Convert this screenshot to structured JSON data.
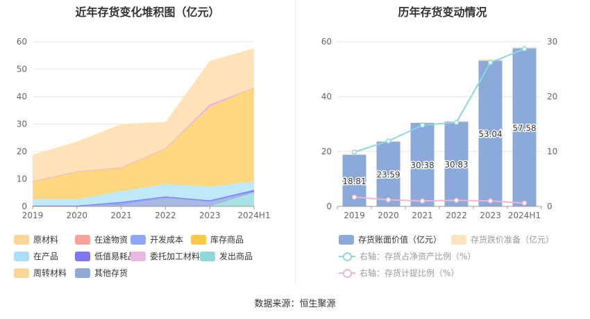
{
  "left_chart": {
    "title": "近年存货变化堆积图（亿元）",
    "legend": [
      {
        "name": "原材料",
        "color": "#FDD497"
      },
      {
        "name": "在途物资",
        "color": "#F7A39C"
      },
      {
        "name": "开发成本",
        "color": "#8DA8F7"
      },
      {
        "name": "库存商品",
        "color": "#FCC944"
      },
      {
        "name": "在产品",
        "color": "#A9E0F7"
      },
      {
        "name": "低值易耗品",
        "color": "#7F77EE"
      },
      {
        "name": "委托加工材料",
        "color": "#E9B7DF"
      },
      {
        "name": "发出商品",
        "color": "#8ED8D9"
      },
      {
        "name": "周转材料",
        "color": "#FDD79A"
      },
      {
        "name": "其他存货",
        "color": "#8FA8D8"
      }
    ]
  },
  "right_chart": {
    "title": "历年存货变动情况",
    "legend": [
      {
        "name": "存货账面价值（亿元）",
        "color": "#8BA9D9"
      },
      {
        "name": "存货跌价准备（亿元）",
        "color": "#FCE4BE"
      },
      {
        "name": "右轴：存货占净资产比例（%）",
        "color": "#8AD8DE"
      },
      {
        "name": "右轴：存货计提比例（%）",
        "color": "#E9B6D8"
      }
    ]
  },
  "chart_data": [
    {
      "type": "area",
      "title": "近年存货变化堆积图（亿元）",
      "categories": [
        "2019",
        "2020",
        "2021",
        "2022",
        "2023",
        "2024H1"
      ],
      "ylim": [
        0,
        60
      ],
      "yticks": [
        0,
        10,
        20,
        30,
        40,
        50,
        60
      ],
      "series": [
        {
          "name": "发出商品",
          "color": "#A8E2E3",
          "values": [
            0,
            0,
            0,
            0,
            0,
            5.0
          ]
        },
        {
          "name": "其他存货",
          "color": "#A6B9E0",
          "values": [
            0.3,
            0.3,
            0.5,
            3.0,
            1.6,
            0
          ]
        },
        {
          "name": "开发成本",
          "color": "#8DA8F7",
          "values": [
            0,
            0,
            1.0,
            0.5,
            0.5,
            0.5
          ]
        },
        {
          "name": "低值易耗品",
          "color": "#7F77EE",
          "values": [
            0,
            0,
            0.1,
            0.1,
            0.1,
            0.5
          ]
        },
        {
          "name": "在产品",
          "color": "#BDE9F9",
          "values": [
            2.3,
            2.3,
            3.9,
            4.5,
            5.0,
            3.0
          ]
        },
        {
          "name": "库存商品",
          "color": "#FFD77E",
          "values": [
            6.6,
            10.2,
            8.6,
            13.0,
            29.0,
            34.2
          ]
        },
        {
          "name": "委托加工材料",
          "color": "#E9B7DF",
          "values": [
            0,
            0,
            0.1,
            0.1,
            1.0,
            0.1
          ]
        },
        {
          "name": "原材料",
          "color": "#FEE3B8",
          "values": [
            9.6,
            10.8,
            15.8,
            9.6,
            15.8,
            14.3
          ]
        }
      ]
    },
    {
      "type": "bar",
      "title": "历年存货变动情况",
      "categories": [
        "2019",
        "2020",
        "2021",
        "2022",
        "2023",
        "2024H1"
      ],
      "ylim": [
        0,
        60
      ],
      "yticks": [
        0,
        20,
        40,
        60
      ],
      "y2lim": [
        0,
        30
      ],
      "y2ticks": [
        0,
        10,
        20,
        30
      ],
      "series": [
        {
          "name": "存货账面价值（亿元）",
          "values": [
            18.81,
            23.59,
            30.38,
            30.83,
            53.04,
            57.58
          ],
          "labels": [
            "18.81",
            "23.59",
            "30.38",
            "30.83",
            "53.04",
            "57.58"
          ]
        },
        {
          "name": "存货跌价准备（亿元）",
          "values": [
            0.33,
            0.29,
            0.31,
            0.33,
            0.55,
            0.44
          ]
        },
        {
          "name": "右轴：存货占净资产比例（%）",
          "axis": "right",
          "values": [
            9.9,
            11.9,
            14.8,
            15.3,
            26.2,
            28.7
          ]
        },
        {
          "name": "右轴：存货计提比例（%）",
          "axis": "right",
          "values": [
            1.7,
            1.2,
            1.0,
            1.1,
            1.0,
            0.6
          ]
        }
      ]
    }
  ],
  "source": "数据来源：恒生聚源"
}
